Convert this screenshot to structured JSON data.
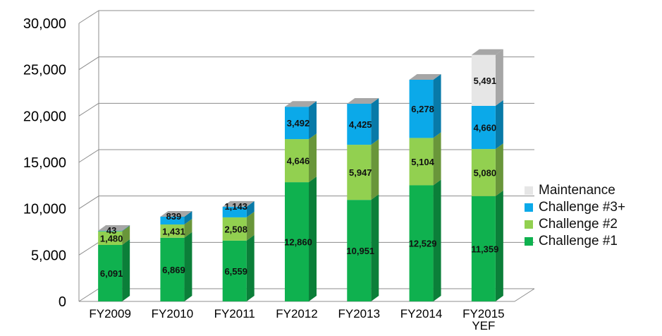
{
  "chart_data": {
    "type": "bar",
    "stacked": true,
    "three_d": true,
    "categories": [
      "FY2009",
      "FY2010",
      "FY2011",
      "FY2012",
      "FY2013",
      "FY2014",
      "FY2015\nYEF"
    ],
    "series": [
      {
        "name": "Challenge #1",
        "color": "#0fb14f",
        "values": [
          6091,
          6869,
          6559,
          12860,
          10951,
          12529,
          11359
        ]
      },
      {
        "name": "Challenge #2",
        "color": "#92d050",
        "values": [
          1480,
          1431,
          2508,
          4646,
          5947,
          5104,
          5080
        ]
      },
      {
        "name": "Challenge #3+",
        "color": "#0ba9e9",
        "values": [
          43,
          839,
          1143,
          3492,
          4425,
          6278,
          4660
        ]
      },
      {
        "name": "Maintenance",
        "color": "#e6e6e6",
        "values": [
          0,
          0,
          0,
          0,
          0,
          0,
          5491
        ]
      }
    ],
    "labels": [
      [
        "6,091",
        "6,869",
        "6,559",
        "12,860",
        "10,951",
        "12,529",
        "11,359"
      ],
      [
        "1,480",
        "1,431",
        "2,508",
        "4,646",
        "5,947",
        "5,104",
        "5,080"
      ],
      [
        "43",
        "839",
        "1,143",
        "3,492",
        "4,425",
        "6,278",
        "4,660"
      ],
      [
        "",
        "",
        "",
        "",
        "",
        "",
        "5,491"
      ]
    ],
    "y_ticks": [
      0,
      5000,
      10000,
      15000,
      20000,
      25000,
      30000
    ],
    "y_tick_labels": [
      "0",
      "5,000",
      "10,000",
      "15,000",
      "20,000",
      "25,000",
      "30,000"
    ],
    "ylim": [
      0,
      30000
    ],
    "grid": true,
    "legend_position": "right",
    "title": "",
    "xlabel": "",
    "ylabel": ""
  },
  "legend": {
    "items": [
      {
        "label": "Maintenance",
        "color": "#e6e6e6"
      },
      {
        "label": "Challenge #3+",
        "color": "#0ba9e9"
      },
      {
        "label": "Challenge #2",
        "color": "#92d050"
      },
      {
        "label": "Challenge #1",
        "color": "#0fb14f"
      }
    ]
  }
}
